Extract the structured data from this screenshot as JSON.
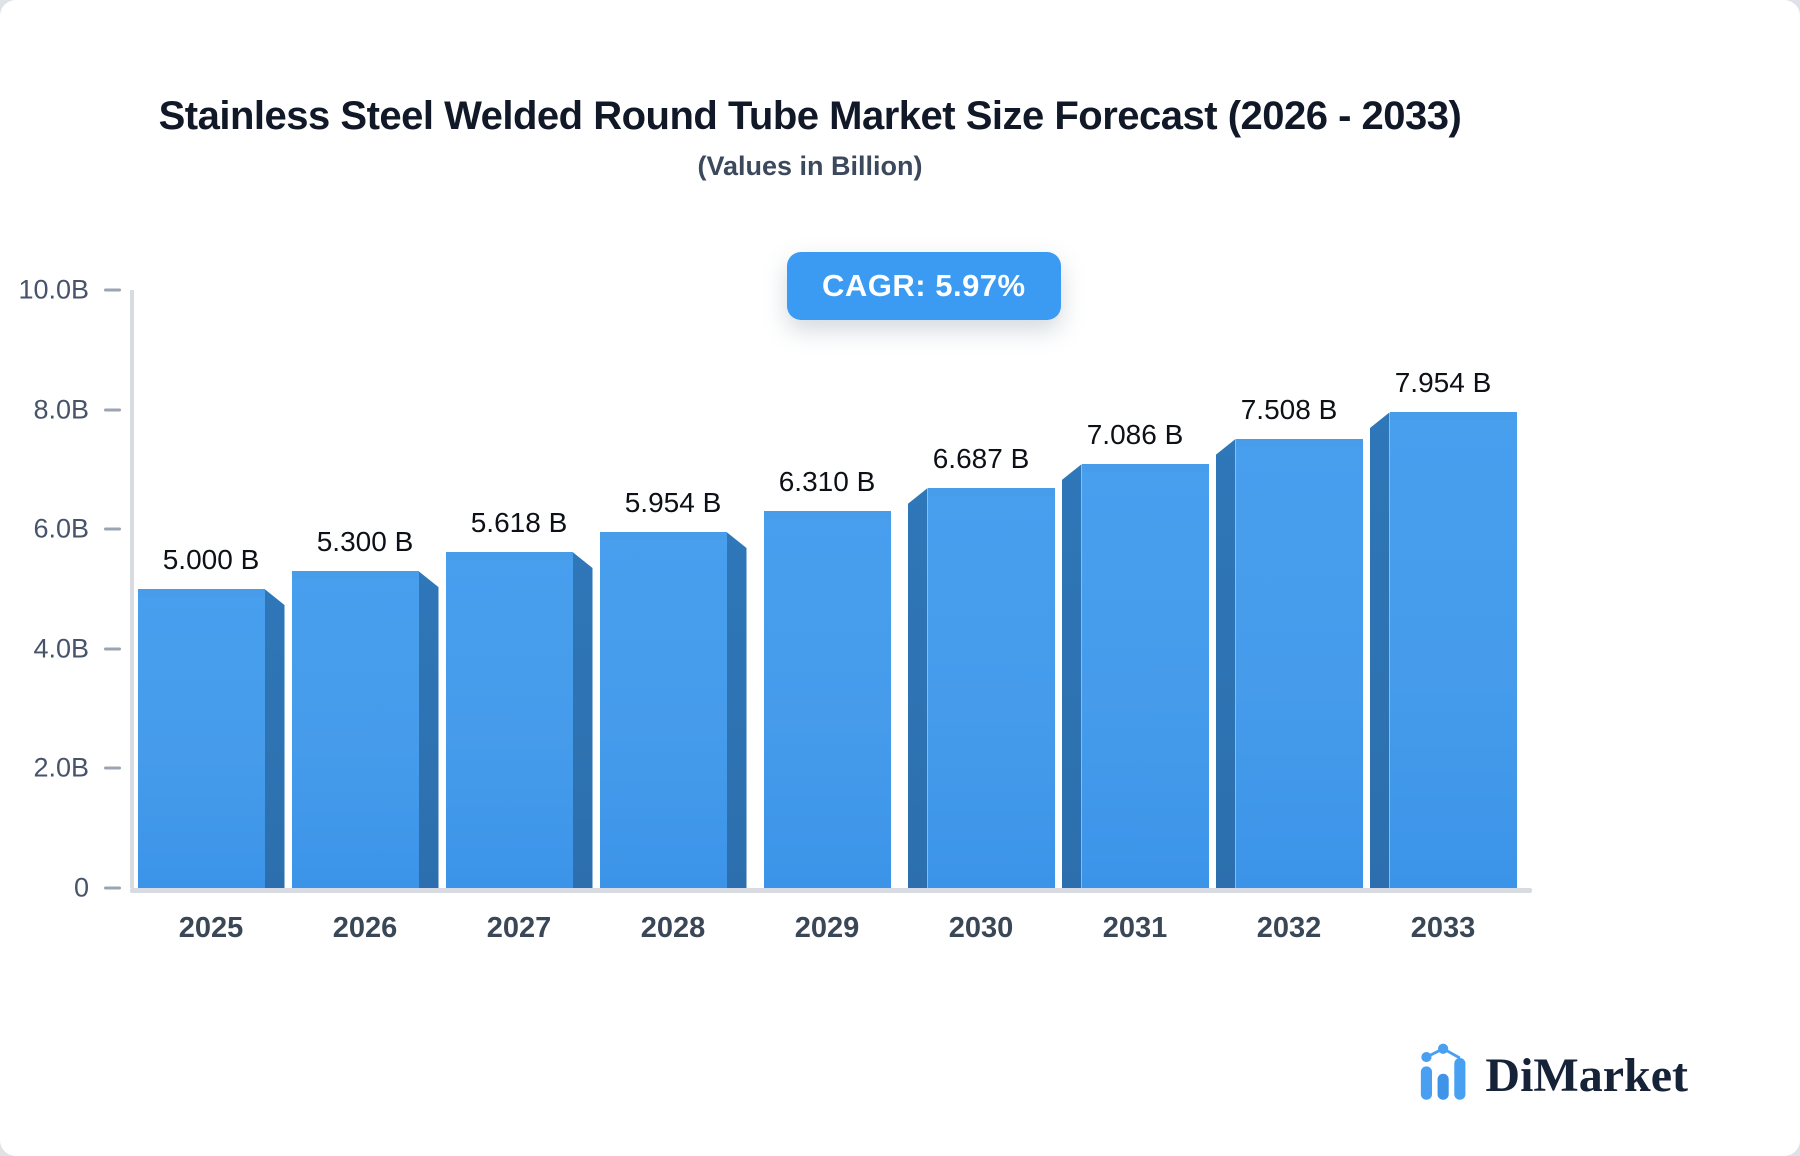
{
  "header": {
    "title": "Stainless Steel Welded Round Tube Market Size Forecast (2026 - 2033)",
    "subtitle": "(Values in Billion)",
    "cagr_badge": "CAGR: 5.97%"
  },
  "logo": {
    "text": "DiMarket"
  },
  "colors": {
    "badge_bg": "#3b9bf2",
    "bar_face_top": "#55a9f1",
    "bar_face_bottom": "#3c94e9",
    "bar_top_strip": "#479dea",
    "bar_side": "#2e77b8",
    "axis_line": "#d8dbe1",
    "tick_dash": "#9ba4b0",
    "y_label": "#46536a",
    "x_label": "#3a4757",
    "value_label": "#0d1117",
    "logo_text": "#152238",
    "logo_icon": "#49a0f0"
  },
  "chart_data": {
    "type": "bar",
    "title": "Stainless Steel Welded Round Tube Market Size Forecast (2026 - 2033)",
    "subtitle": "(Values in Billion)",
    "annotation": "CAGR: 5.97%",
    "categories": [
      "2025",
      "2026",
      "2027",
      "2028",
      "2029",
      "2030",
      "2031",
      "2032",
      "2033"
    ],
    "values": [
      5.0,
      5.3,
      5.618,
      5.954,
      6.31,
      6.687,
      7.086,
      7.508,
      7.954
    ],
    "value_labels": [
      "5.000 B",
      "5.300 B",
      "5.618 B",
      "5.954 B",
      "6.310 B",
      "6.687 B",
      "7.086 B",
      "7.508 B",
      "7.954 B"
    ],
    "unit": "Billion",
    "xlabel": "",
    "ylabel": "",
    "ylim": [
      0,
      10
    ],
    "grid": false,
    "legend": false,
    "yticks": [
      {
        "label": "10.0B",
        "value": 10
      },
      {
        "label": "8.0B",
        "value": 8
      },
      {
        "label": "6.0B",
        "value": 6
      },
      {
        "label": "4.0B",
        "value": 4
      },
      {
        "label": "2.0B",
        "value": 2
      },
      {
        "label": "0",
        "value": 0
      }
    ]
  }
}
